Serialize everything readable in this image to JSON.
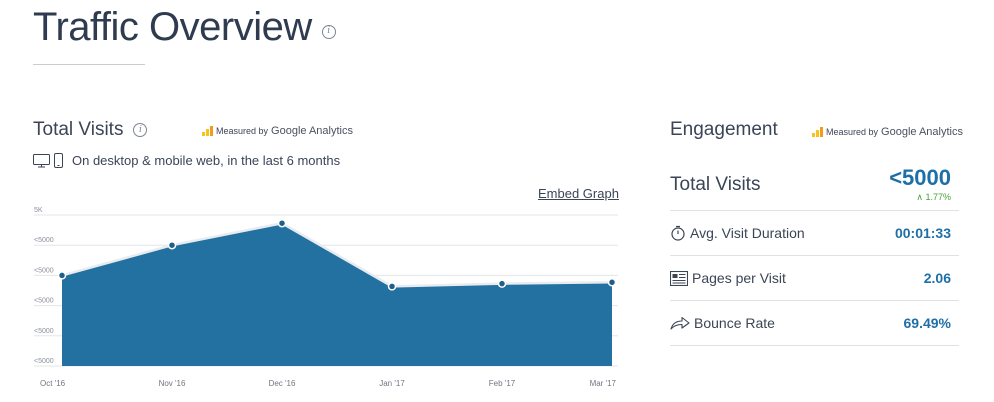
{
  "header": {
    "title": "Traffic Overview"
  },
  "total_visits_panel": {
    "title": "Total Visits",
    "measured_by": "Measured by",
    "analytics_name": "Google Analytics",
    "device_text": "On desktop & mobile web, in the last 6 months",
    "embed_label": "Embed Graph"
  },
  "engagement_panel": {
    "title": "Engagement",
    "measured_by": "Measured by",
    "analytics_name": "Google Analytics",
    "total_visits_label": "Total Visits",
    "total_visits_value": "<5000",
    "total_visits_change": "1.77%",
    "rows": [
      {
        "label": "Avg. Visit Duration",
        "value": "00:01:33",
        "icon": "stopwatch-icon"
      },
      {
        "label": "Pages per Visit",
        "value": "2.06",
        "icon": "pages-icon"
      },
      {
        "label": "Bounce Rate",
        "value": "69.49%",
        "icon": "bounce-arrow-icon"
      }
    ]
  },
  "colors": {
    "area_fill": "#2371a1",
    "line": "#e8ecf0",
    "accent_value": "#1e6fa8",
    "positive": "#4a9e3d",
    "ga_orange": "#f29c1f",
    "ga_yellow": "#f7c21d"
  },
  "chart_data": {
    "type": "area",
    "categories": [
      "Oct '16",
      "Nov '16",
      "Dec '16",
      "Jan '17",
      "Feb '17",
      "Mar '17"
    ],
    "values": [
      3300,
      4400,
      5200,
      2900,
      3000,
      3050
    ],
    "y_tick_labels": [
      "5K",
      "<5000",
      "<5000",
      "<5000",
      "<5000",
      "<5000"
    ],
    "ylim": [
      0,
      5500
    ],
    "grid": true,
    "title": "",
    "xlabel": "",
    "ylabel": ""
  }
}
